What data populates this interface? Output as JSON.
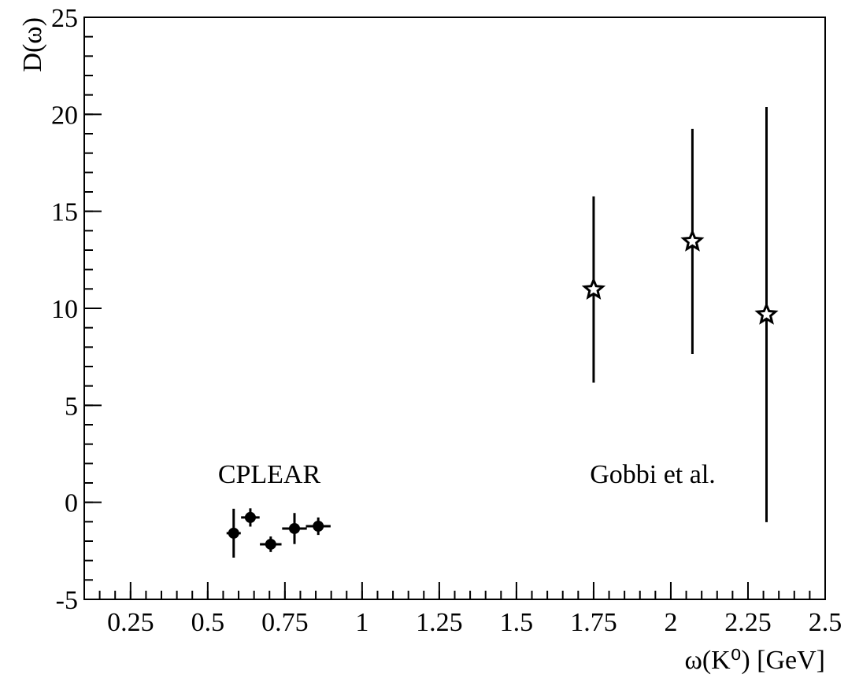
{
  "chart_data": {
    "type": "scatter",
    "xlabel": "ω(K⁰) [GeV]",
    "ylabel": "D(ω)",
    "xlim": [
      0.1,
      2.5
    ],
    "ylim": [
      -5,
      25
    ],
    "xticks": [
      0.25,
      0.5,
      0.75,
      1,
      1.25,
      1.5,
      1.75,
      2,
      2.25,
      2.5
    ],
    "yticks": [
      -5,
      0,
      5,
      10,
      15,
      20,
      25
    ],
    "annotations": [
      "CPLEAR",
      "Gobbi et al."
    ],
    "series": [
      {
        "name": "CPLEAR",
        "marker": "circle",
        "color": "#000000",
        "x": [
          0.584,
          0.638,
          0.704,
          0.781,
          0.858
        ],
        "xerr": [
          0.023,
          0.03,
          0.035,
          0.04,
          0.04
        ],
        "values": [
          -1.59,
          -0.78,
          -2.16,
          -1.35,
          -1.23
        ],
        "yerr": [
          1.26,
          0.47,
          0.4,
          0.8,
          0.45
        ]
      },
      {
        "name": "Gobbi et al.",
        "marker": "star",
        "color": "#000000",
        "x": [
          1.75,
          2.07,
          2.31
        ],
        "values": [
          10.97,
          13.45,
          9.68
        ],
        "yerr": [
          4.8,
          5.8,
          10.7
        ]
      }
    ]
  }
}
